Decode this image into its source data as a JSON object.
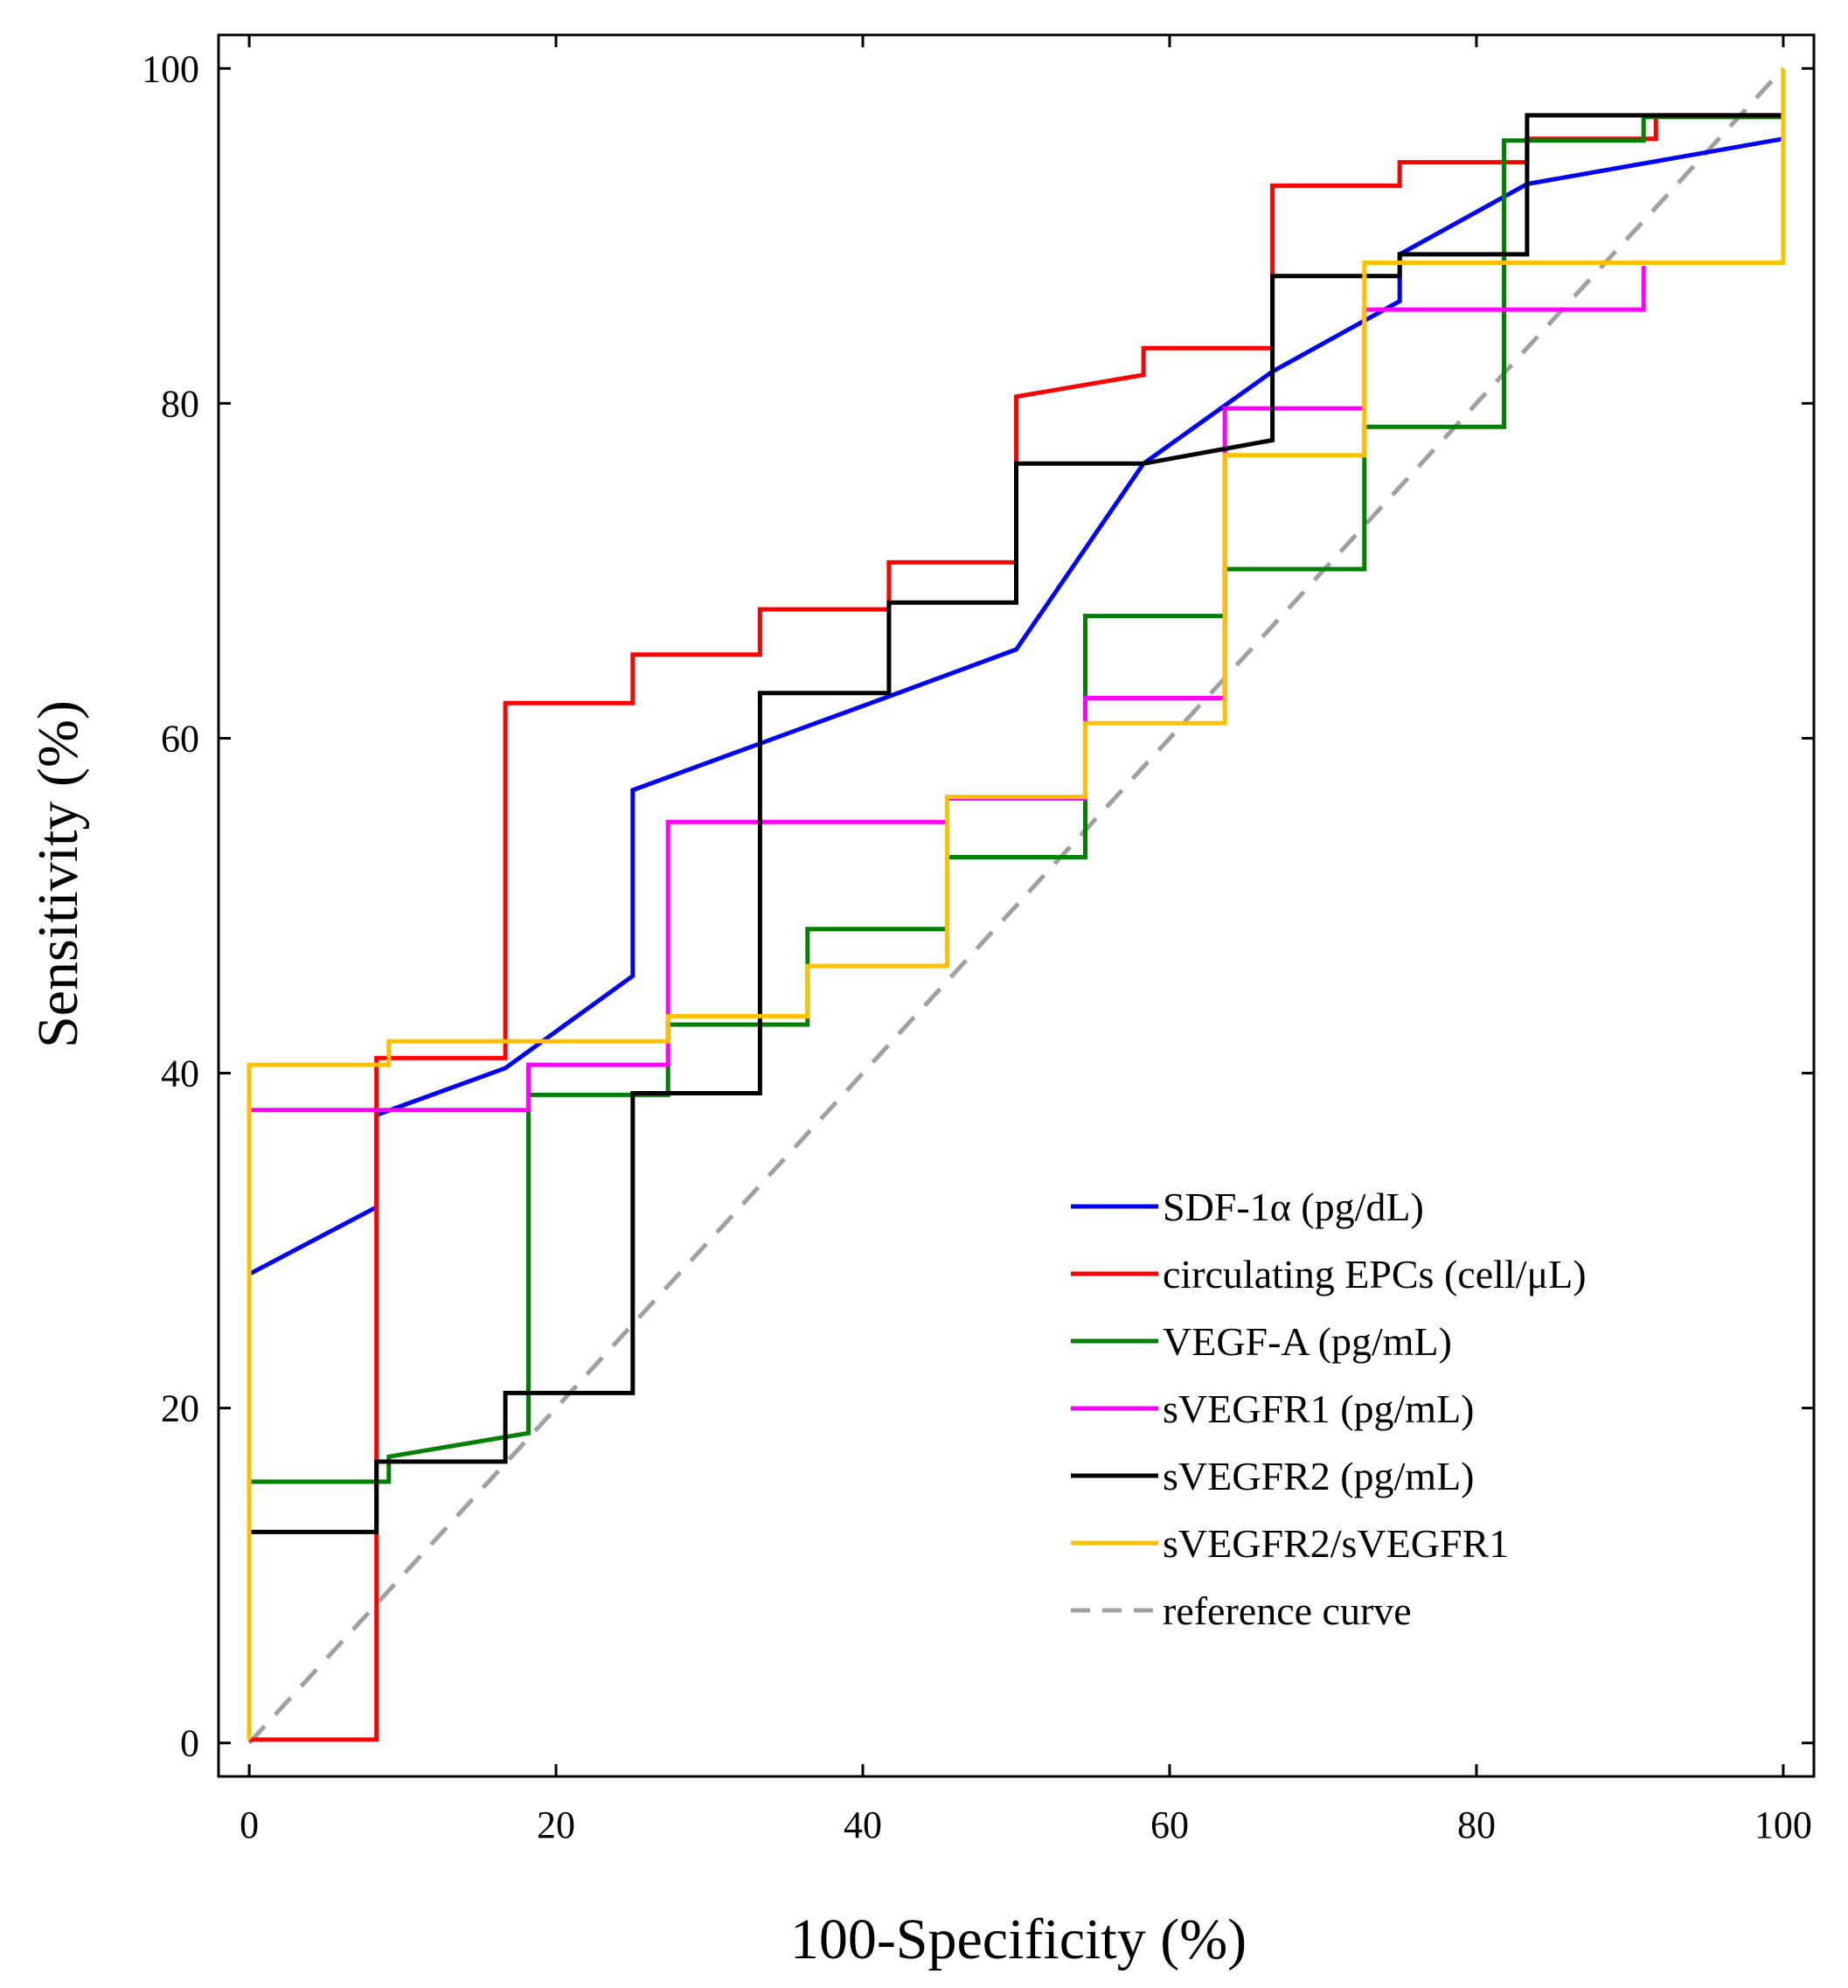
{
  "chart_data": {
    "type": "line",
    "xlabel": "100-Specificity (%)",
    "ylabel": "Sensitivity (%)",
    "xlim": [
      -2,
      102
    ],
    "ylim": [
      -2,
      102
    ],
    "x_ticks": [
      0,
      20,
      40,
      60,
      80,
      100
    ],
    "y_ticks": [
      0,
      20,
      40,
      60,
      80,
      100
    ],
    "grid": false,
    "legend_position": "bottom-right",
    "series": [
      {
        "name": "SDF-1α (pg/dL)",
        "color": "#0000ff",
        "style": "solid",
        "points": [
          [
            0,
            28
          ],
          [
            8.3,
            32
          ],
          [
            8.3,
            37.5
          ],
          [
            16.7,
            40.3
          ],
          [
            25,
            45.8
          ],
          [
            25,
            56.9
          ],
          [
            41.7,
            62.5
          ],
          [
            50,
            65.3
          ],
          [
            58.3,
            76.4
          ],
          [
            66.7,
            81.9
          ],
          [
            75,
            86.1
          ],
          [
            75,
            88.9
          ],
          [
            83.3,
            93.1
          ],
          [
            100,
            95.8
          ]
        ]
      },
      {
        "name": "circulating EPCs (cell/μL)",
        "color": "#ff0000",
        "style": "solid",
        "points": [
          [
            0,
            0.2
          ],
          [
            8.3,
            0.2
          ],
          [
            8.3,
            40.9
          ],
          [
            16.7,
            40.9
          ],
          [
            16.7,
            62.1
          ],
          [
            25,
            62.1
          ],
          [
            25,
            65
          ],
          [
            33.3,
            65
          ],
          [
            33.3,
            67.7
          ],
          [
            41.7,
            67.7
          ],
          [
            41.7,
            70.5
          ],
          [
            50,
            70.5
          ],
          [
            50,
            80.4
          ],
          [
            58.3,
            81.7
          ],
          [
            58.3,
            83.3
          ],
          [
            66.7,
            83.3
          ],
          [
            66.7,
            93
          ],
          [
            75,
            93
          ],
          [
            75,
            94.4
          ],
          [
            83.3,
            94.4
          ],
          [
            83.3,
            95.8
          ],
          [
            91.7,
            95.8
          ],
          [
            91.7,
            97.2
          ],
          [
            100,
            97.2
          ]
        ]
      },
      {
        "name": "VEGF-A (pg/mL)",
        "color": "#008000",
        "style": "solid",
        "points": [
          [
            0,
            15.6
          ],
          [
            9.1,
            15.6
          ],
          [
            9.1,
            17.1
          ],
          [
            18.2,
            18.5
          ],
          [
            18.2,
            38.7
          ],
          [
            27.3,
            38.7
          ],
          [
            27.3,
            42.9
          ],
          [
            36.4,
            42.9
          ],
          [
            36.4,
            48.6
          ],
          [
            45.5,
            48.6
          ],
          [
            45.5,
            52.9
          ],
          [
            54.5,
            52.9
          ],
          [
            54.5,
            67.3
          ],
          [
            63.6,
            67.3
          ],
          [
            63.6,
            70.1
          ],
          [
            72.7,
            70.1
          ],
          [
            72.7,
            78.6
          ],
          [
            81.8,
            78.6
          ],
          [
            81.8,
            95.7
          ],
          [
            90.9,
            95.7
          ],
          [
            90.9,
            97.1
          ],
          [
            100,
            97.1
          ]
        ]
      },
      {
        "name": "sVEGFR1 (pg/mL)",
        "color": "#ff00ff",
        "style": "solid",
        "points": [
          [
            0,
            37.8
          ],
          [
            18.2,
            37.8
          ],
          [
            18.2,
            40.5
          ],
          [
            27.3,
            40.5
          ],
          [
            27.3,
            55
          ],
          [
            45.5,
            55
          ],
          [
            45.5,
            56.4
          ],
          [
            54.5,
            56.4
          ],
          [
            54.5,
            62.4
          ],
          [
            63.6,
            62.4
          ],
          [
            63.6,
            79.7
          ],
          [
            72.7,
            79.7
          ],
          [
            72.7,
            85.6
          ],
          [
            90.9,
            85.6
          ],
          [
            90.9,
            88.2
          ]
        ]
      },
      {
        "name": "sVEGFR2 (pg/mL)",
        "color": "#000000",
        "style": "solid",
        "points": [
          [
            0,
            12.6
          ],
          [
            8.3,
            12.6
          ],
          [
            8.3,
            16.8
          ],
          [
            16.7,
            16.8
          ],
          [
            16.7,
            20.9
          ],
          [
            25,
            20.9
          ],
          [
            25,
            38.8
          ],
          [
            33.3,
            38.8
          ],
          [
            33.3,
            62.7
          ],
          [
            41.7,
            62.7
          ],
          [
            41.7,
            68.1
          ],
          [
            50,
            68.1
          ],
          [
            50,
            76.4
          ],
          [
            58.3,
            76.4
          ],
          [
            66.7,
            77.8
          ],
          [
            66.7,
            87.6
          ],
          [
            75,
            87.6
          ],
          [
            75,
            88.9
          ],
          [
            83.3,
            88.9
          ],
          [
            83.3,
            97.2
          ],
          [
            100,
            97.2
          ]
        ]
      },
      {
        "name": "sVEGFR2/sVEGFR1",
        "color": "#ffc000",
        "style": "solid",
        "points": [
          [
            0,
            0.2
          ],
          [
            0,
            40.5
          ],
          [
            9.1,
            40.5
          ],
          [
            9.1,
            41.9
          ],
          [
            27.3,
            41.9
          ],
          [
            27.3,
            43.4
          ],
          [
            36.4,
            43.4
          ],
          [
            36.4,
            46.4
          ],
          [
            45.5,
            46.4
          ],
          [
            45.5,
            56.5
          ],
          [
            54.5,
            56.5
          ],
          [
            54.5,
            60.9
          ],
          [
            63.6,
            60.9
          ],
          [
            63.6,
            76.9
          ],
          [
            72.7,
            76.9
          ],
          [
            72.7,
            88.4
          ],
          [
            100,
            88.4
          ],
          [
            100,
            100
          ]
        ]
      },
      {
        "name": "reference curve",
        "color": "#a0a0a0",
        "style": "dashed",
        "points": [
          [
            0,
            0
          ],
          [
            100,
            100
          ]
        ]
      }
    ]
  }
}
